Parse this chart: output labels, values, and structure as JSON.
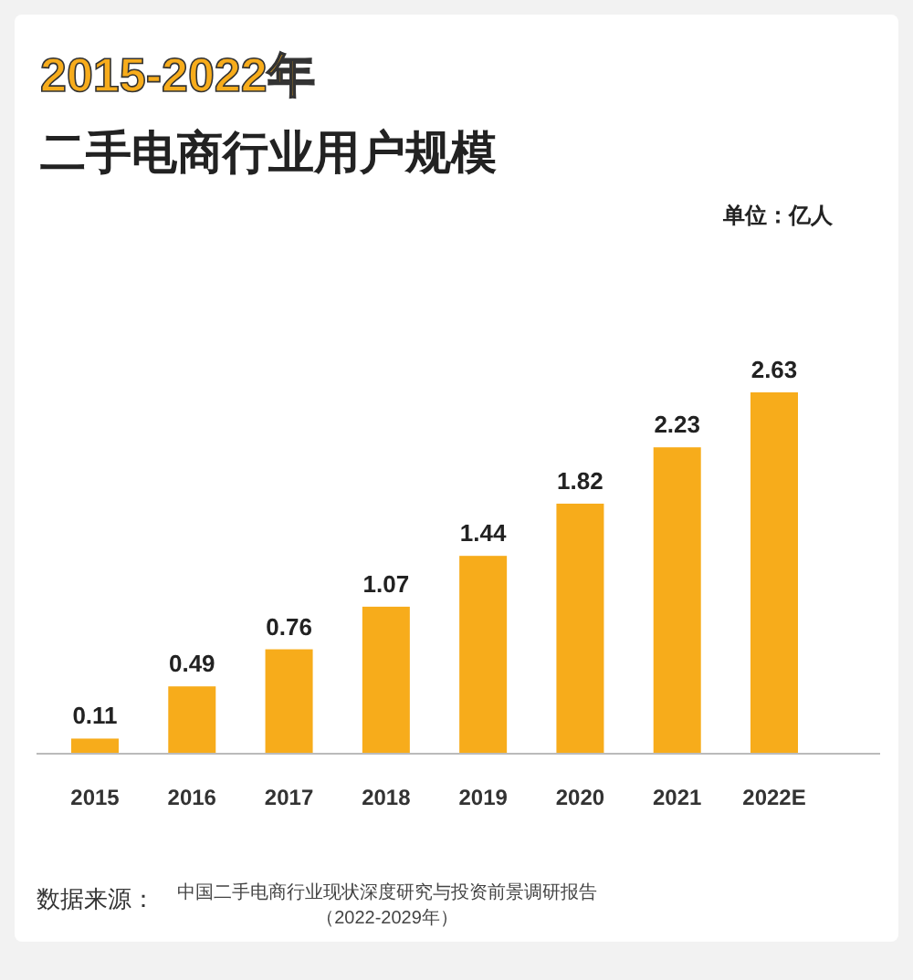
{
  "chart_data": {
    "type": "bar",
    "title": "2015-2022年",
    "subtitle": "二手电商行业用户规模",
    "categories": [
      "2015",
      "2016",
      "2017",
      "2018",
      "2019",
      "2020",
      "2021",
      "2022E"
    ],
    "values": [
      0.11,
      0.49,
      0.76,
      1.07,
      1.44,
      1.82,
      2.23,
      2.63
    ],
    "color": "#f7ac1b",
    "data_labels": true,
    "annotations": [
      "单位：亿人",
      "数据来源：",
      "中国二手电商行业现状深度研究与投资前景调研报告（2022-2029年）"
    ]
  }
}
